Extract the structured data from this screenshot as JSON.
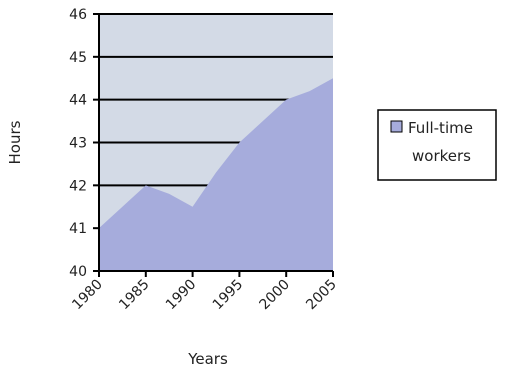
{
  "chart_data": {
    "type": "area",
    "x": [
      1980,
      1985,
      1990,
      1995,
      2000,
      2005
    ],
    "series": [
      {
        "name": "Full-time workers",
        "x": [
          1980,
          1985,
          1987.5,
          1990,
          1992.5,
          1995,
          2000,
          2002.5,
          2005
        ],
        "values": [
          41.0,
          42.0,
          41.8,
          41.5,
          42.3,
          43.0,
          44.0,
          44.2,
          44.5
        ]
      }
    ],
    "x_tick_labels": [
      "1980",
      "1985",
      "1990",
      "1995",
      "2000",
      "2005"
    ],
    "y_tick_labels": [
      "40",
      "41",
      "42",
      "43",
      "44",
      "45",
      "46"
    ],
    "xlabel": "Years",
    "ylabel": "Hours",
    "xlim": [
      1980,
      2005
    ],
    "ylim": [
      40,
      46
    ],
    "grid": true,
    "legend": {
      "entries": [
        "Full-time workers"
      ],
      "placement": "right"
    },
    "colors": {
      "fill": "#a6acdc",
      "plot_bg": "#d3dae6",
      "line": "#000000"
    }
  }
}
